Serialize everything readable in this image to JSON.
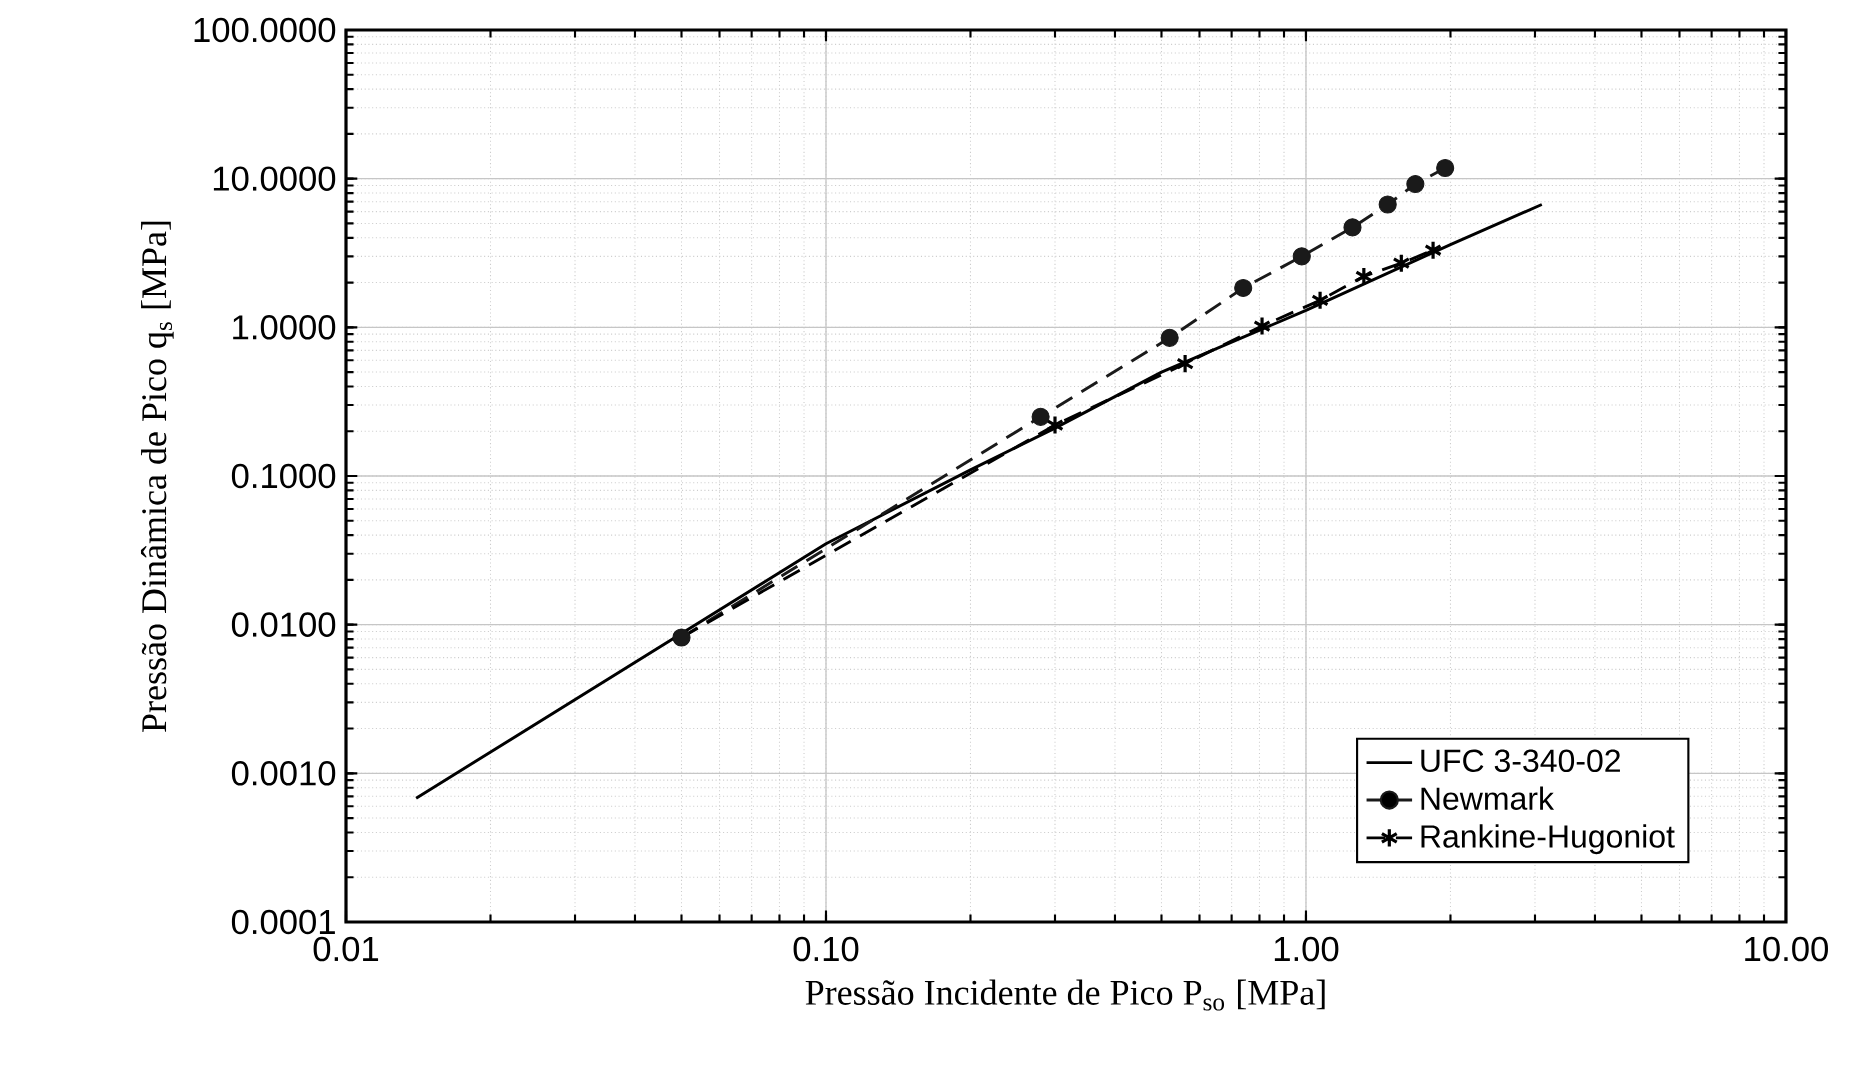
{
  "chart_data": {
    "type": "line",
    "xlabel": "Pressão Incidente de Pico P$_{so}$ [MPa]",
    "ylabel": "Pressão Dinâmica de Pico q$_{s}$ [MPa]",
    "log": "xy",
    "grid": true,
    "legend": "bottom right",
    "xlim": [
      0.01,
      10
    ],
    "ylim": [
      0.0001,
      100
    ],
    "xticks": [
      {
        "value": 0.01,
        "label": "0.01"
      },
      {
        "value": 0.1,
        "label": "0.10"
      },
      {
        "value": 1,
        "label": "1.00"
      },
      {
        "value": 10,
        "label": "10.00"
      }
    ],
    "yticks": [
      {
        "value": 0.0001,
        "label": "0.0001"
      },
      {
        "value": 0.001,
        "label": "0.0010"
      },
      {
        "value": 0.01,
        "label": "0.0100"
      },
      {
        "value": 0.1,
        "label": "0.1000"
      },
      {
        "value": 1,
        "label": "1.0000"
      },
      {
        "value": 10,
        "label": "10.0000"
      },
      {
        "value": 100,
        "label": "100.0000"
      }
    ],
    "series": [
      {
        "name": "UFC 3-340-02",
        "color": "#000000",
        "marker": "none",
        "line_style": "solid",
        "x": [
          0.014,
          0.1,
          0.2,
          0.3,
          0.5,
          1,
          2,
          3.1
        ],
        "values": [
          0.00068,
          0.035,
          0.11,
          0.21,
          0.5,
          1.3,
          3.6,
          6.7
        ]
      },
      {
        "name": "Newmark",
        "color": "#1a1a1a",
        "marker": "circle",
        "line_style": "dashed",
        "x": [
          0.05,
          0.28,
          0.52,
          0.74,
          0.98,
          1.25,
          1.48,
          1.69,
          1.95
        ],
        "values": [
          0.0082,
          0.25,
          0.85,
          1.84,
          3.0,
          4.7,
          6.7,
          9.2,
          11.8
        ]
      },
      {
        "name": "Rankine-Hugoniot",
        "color": "#000000",
        "marker": "cross",
        "line_style": "dashed",
        "x": [
          0.05,
          0.3,
          0.56,
          0.81,
          1.07,
          1.32,
          1.58,
          1.84
        ],
        "values": [
          0.0082,
          0.22,
          0.57,
          1.02,
          1.52,
          2.2,
          2.7,
          3.3
        ]
      }
    ]
  }
}
